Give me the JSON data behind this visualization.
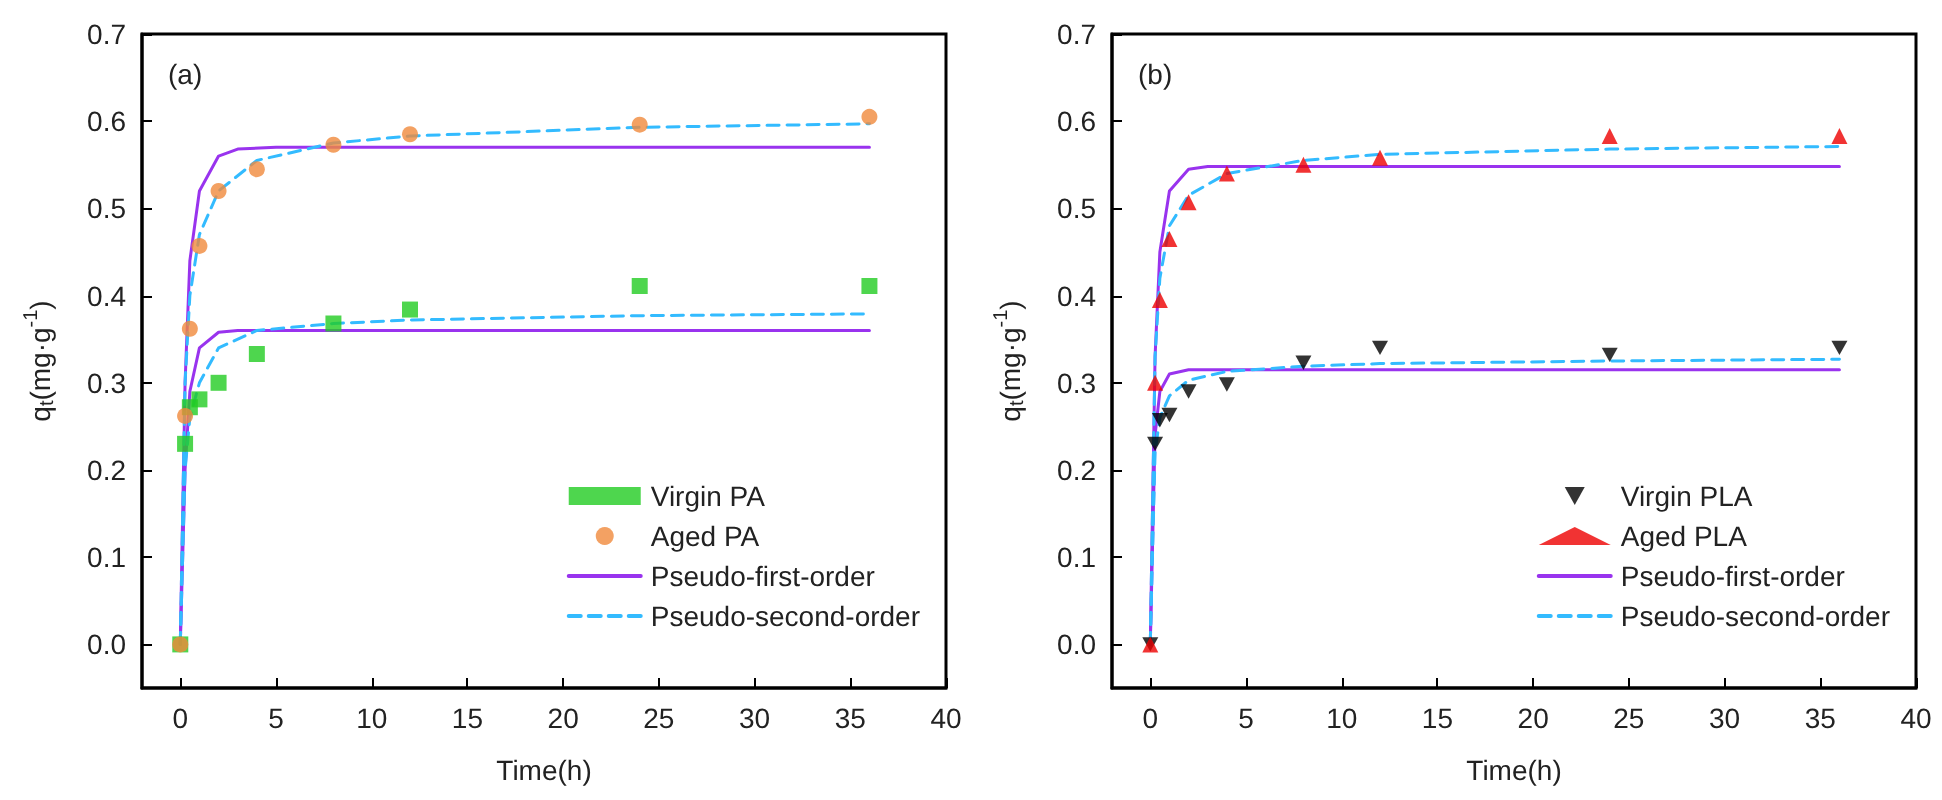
{
  "chart_data": [
    {
      "type": "scatter",
      "xlabel": "Time(h)",
      "ylabel": "q$_{t}$(mg·g$^{-1}$)",
      "annotations": [
        "(a)"
      ],
      "xlim": [
        -2,
        40
      ],
      "xticks": [
        0,
        5,
        10,
        15,
        20,
        25,
        30,
        35,
        40
      ],
      "ylim": [
        -0.05,
        0.7
      ],
      "yticks": [
        {
          "value": 0,
          "label": "0.0"
        },
        0.1,
        0.2,
        0.3,
        0.4,
        0.5,
        0.6,
        0.7
      ],
      "grid": false,
      "legend": "bottom right",
      "series": [
        {
          "name": "Virgin PA",
          "marker": "square",
          "color": "#22cc22",
          "x": [
            0,
            0.25,
            0.5,
            1,
            2,
            4,
            8,
            12,
            24,
            36
          ],
          "values": [
            0,
            0.23,
            0.272,
            0.281,
            0.3,
            0.333,
            0.368,
            0.384,
            0.411,
            0.411
          ]
        },
        {
          "name": "Aged PA",
          "marker": "circle",
          "color": "#f08a3c",
          "x": [
            0,
            0.25,
            0.5,
            1,
            2,
            4,
            8,
            12,
            24,
            36
          ],
          "values": [
            0,
            0.262,
            0.362,
            0.457,
            0.52,
            0.545,
            0.573,
            0.585,
            0.596,
            0.605
          ]
        },
        {
          "name": "Pseudo-first-order",
          "type": "line",
          "marker": "none",
          "line_style": "solid",
          "color": "#9933ee",
          "x": [
            0,
            0.25,
            0.5,
            1,
            2,
            3,
            36
          ],
          "values": [
            0,
            0.2,
            0.29,
            0.34,
            0.358,
            0.36,
            0.36
          ]
        },
        {
          "type": "line",
          "marker": "none",
          "line_style": "solid",
          "color": "#9933ee",
          "x": [
            0,
            0.25,
            0.5,
            1,
            2,
            3,
            5,
            36
          ],
          "values": [
            0,
            0.3,
            0.44,
            0.52,
            0.56,
            0.568,
            0.57,
            0.57
          ]
        },
        {
          "name": "Pseudo-second-order",
          "type": "line",
          "marker": "none",
          "line_style": "dashed",
          "color": "#33bbff",
          "x": [
            0,
            0.25,
            0.5,
            1,
            2,
            4,
            8,
            12,
            24,
            36
          ],
          "values": [
            0,
            0.2,
            0.26,
            0.3,
            0.34,
            0.36,
            0.368,
            0.372,
            0.377,
            0.379
          ]
        },
        {
          "type": "line",
          "marker": "none",
          "line_style": "dashed",
          "color": "#33bbff",
          "x": [
            0,
            0.25,
            0.5,
            1,
            2,
            4,
            8,
            12,
            24,
            36
          ],
          "values": [
            0,
            0.3,
            0.4,
            0.47,
            0.52,
            0.555,
            0.575,
            0.583,
            0.593,
            0.597
          ]
        }
      ]
    },
    {
      "type": "scatter",
      "xlabel": "Time(h)",
      "ylabel": "q$_{t}$(mg·g$^{-1}$)",
      "annotations": [
        "(b)"
      ],
      "xlim": [
        -2,
        40
      ],
      "xticks": [
        0,
        5,
        10,
        15,
        20,
        25,
        30,
        35,
        40
      ],
      "ylim": [
        -0.05,
        0.7
      ],
      "yticks": [
        {
          "value": 0,
          "label": "0.0"
        },
        0.1,
        0.2,
        0.3,
        0.4,
        0.5,
        0.6,
        0.7
      ],
      "grid": false,
      "legend": "bottom right",
      "series": [
        {
          "name": "Virgin PLA",
          "marker": "triangle-down",
          "color": "#000000",
          "x": [
            0,
            0.25,
            0.5,
            1,
            2,
            4,
            8,
            12,
            24,
            36
          ],
          "values": [
            0,
            0.23,
            0.257,
            0.263,
            0.29,
            0.298,
            0.323,
            0.34,
            0.332,
            0.34
          ]
        },
        {
          "name": "Aged PLA",
          "marker": "triangle",
          "color": "#ee0000",
          "x": [
            0,
            0.25,
            0.5,
            1,
            2,
            4,
            8,
            12,
            24,
            36
          ],
          "values": [
            0,
            0.3,
            0.395,
            0.465,
            0.507,
            0.54,
            0.55,
            0.558,
            0.583,
            0.583
          ]
        },
        {
          "name": "Pseudo-first-order",
          "type": "line",
          "marker": "none",
          "line_style": "solid",
          "color": "#9933ee",
          "x": [
            0,
            0.25,
            0.5,
            1,
            2,
            36
          ],
          "values": [
            0,
            0.24,
            0.29,
            0.31,
            0.315,
            0.315
          ]
        },
        {
          "type": "line",
          "marker": "none",
          "line_style": "solid",
          "color": "#9933ee",
          "x": [
            0,
            0.25,
            0.5,
            1,
            2,
            3,
            36
          ],
          "values": [
            0,
            0.33,
            0.45,
            0.52,
            0.545,
            0.548,
            0.548
          ]
        },
        {
          "name": "Pseudo-second-order",
          "type": "line",
          "marker": "none",
          "line_style": "dashed",
          "color": "#33bbff",
          "x": [
            0,
            0.25,
            0.5,
            1,
            2,
            4,
            8,
            12,
            24,
            36
          ],
          "values": [
            0,
            0.22,
            0.26,
            0.285,
            0.303,
            0.313,
            0.319,
            0.322,
            0.325,
            0.327
          ]
        },
        {
          "type": "line",
          "marker": "none",
          "line_style": "dashed",
          "color": "#33bbff",
          "x": [
            0,
            0.25,
            0.5,
            1,
            2,
            4,
            8,
            12,
            24,
            36
          ],
          "values": [
            0,
            0.33,
            0.42,
            0.48,
            0.515,
            0.54,
            0.555,
            0.562,
            0.568,
            0.571
          ]
        }
      ]
    }
  ]
}
